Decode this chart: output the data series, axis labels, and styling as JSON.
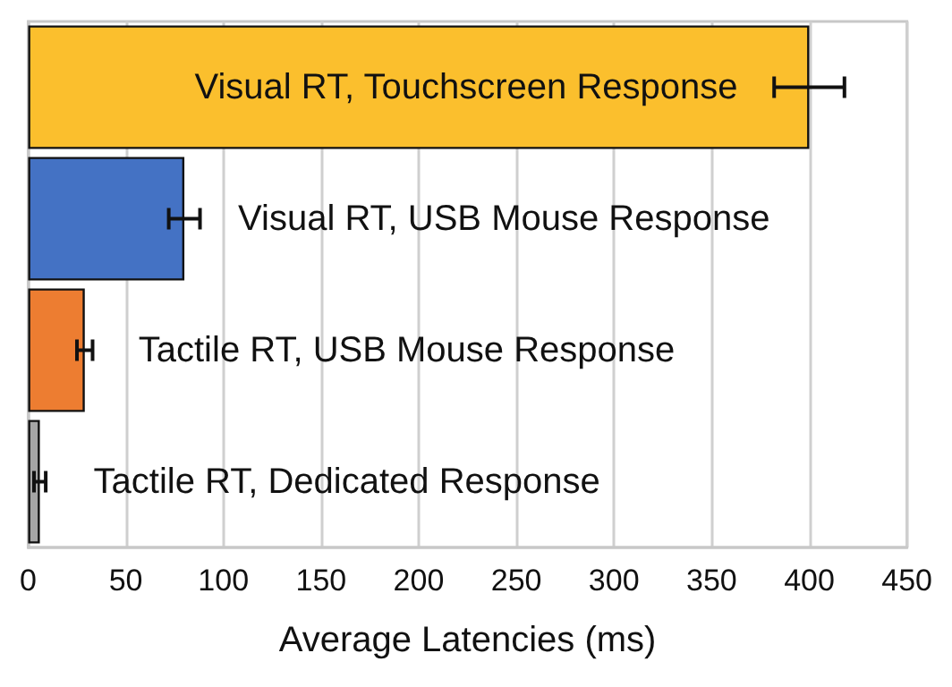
{
  "chart_data": {
    "type": "bar",
    "orientation": "horizontal",
    "xlabel": "Average Latencies (ms)",
    "categories": [
      "Visual RT, Touchscreen Response",
      "Visual RT, USB Mouse Response",
      "Tactile RT, USB Mouse Response",
      "Tactile RT, Dedicated Response"
    ],
    "values": [
      400,
      80,
      29,
      6
    ],
    "errors": [
      18,
      8,
      4,
      3
    ],
    "colors": [
      "#fbbf2d",
      "#4472c4",
      "#ed7d31",
      "#a5a5a5"
    ],
    "xlim": [
      0,
      450
    ],
    "xticks": [
      0,
      50,
      100,
      150,
      200,
      250,
      300,
      350,
      400,
      450
    ],
    "grid": "x"
  }
}
